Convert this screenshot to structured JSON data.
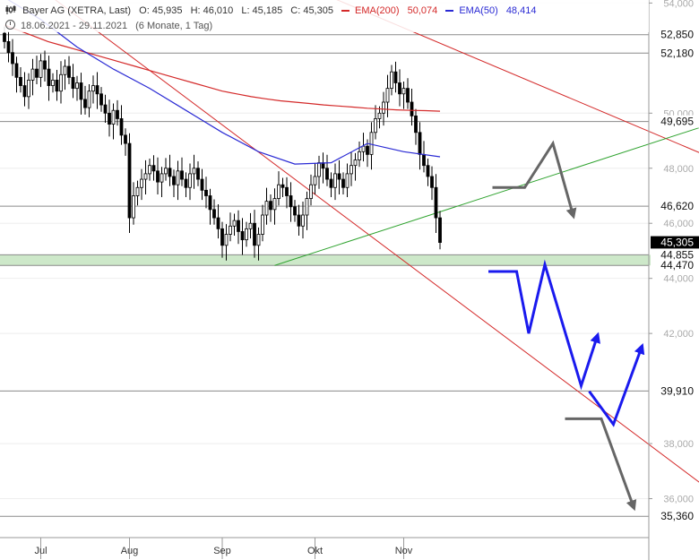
{
  "header": {
    "title": "Bayer AG (XETRA, Last)",
    "open": "O: 45,935",
    "high": "H: 46,010",
    "low": "L: 45,185",
    "close": "C: 45,305",
    "ema200_label": "EMA(200)",
    "ema200_value": "50,074",
    "ema50_label": "EMA(50)",
    "ema50_value": "48,414",
    "period": "18.06.2021 - 29.11.2021",
    "span": "(6 Monate, 1 Tag)"
  },
  "colors": {
    "ema200": "#d42a2a",
    "ema50": "#2a2ad4",
    "trend_red": "#d42a2a",
    "trend_green": "#2fa32f",
    "zone_green": "#cde8c9",
    "arrow_gray": "#666666",
    "arrow_blue": "#1a1aee",
    "candle": "#000000"
  },
  "chart_data": {
    "type": "candlestick",
    "ylim": [
      34.0,
      54.5
    ],
    "y_ticks": [
      {
        "value": 54,
        "label": "54,000"
      },
      {
        "value": 50,
        "label": "50,000"
      },
      {
        "value": 48,
        "label": "48,000"
      },
      {
        "value": 46,
        "label": "46,000"
      },
      {
        "value": 44,
        "label": "44,000"
      },
      {
        "value": 42,
        "label": "42,000"
      },
      {
        "value": 38,
        "label": "38,000"
      },
      {
        "value": 36,
        "label": "36,000"
      }
    ],
    "x_ticks": [
      {
        "label": "Jul",
        "index": 9
      },
      {
        "label": "Aug",
        "index": 31
      },
      {
        "label": "Sep",
        "index": 54
      },
      {
        "label": "Okt",
        "index": 77
      },
      {
        "label": "Nov",
        "index": 99
      }
    ],
    "horizontal_levels": [
      52.85,
      52.18,
      49.695,
      46.62,
      44.855,
      44.47,
      39.91,
      35.36
    ],
    "level_labels": [
      {
        "value": 52.85,
        "label": "52,850"
      },
      {
        "value": 52.18,
        "label": "52,180"
      },
      {
        "value": 49.695,
        "label": "49,695"
      },
      {
        "value": 46.62,
        "label": "46,620"
      },
      {
        "value": 45.305,
        "label": "45,305",
        "highlight": true
      },
      {
        "value": 44.855,
        "label": "44,855"
      },
      {
        "value": 44.47,
        "label": "44,470"
      },
      {
        "value": 39.91,
        "label": "39,910"
      },
      {
        "value": 35.36,
        "label": "35,360"
      }
    ],
    "support_zone": [
      44.47,
      44.855
    ],
    "closes": [
      52.6,
      52.2,
      51.8,
      51.3,
      51.0,
      50.6,
      51.2,
      51.6,
      51.3,
      51.9,
      51.6,
      51.0,
      51.2,
      50.8,
      51.4,
      51.7,
      51.3,
      50.9,
      51.1,
      50.5,
      50.2,
      50.8,
      51.0,
      50.7,
      50.3,
      50.0,
      49.6,
      50.1,
      49.8,
      49.2,
      48.9,
      46.2,
      47.0,
      47.3,
      47.6,
      47.8,
      48.1,
      47.9,
      47.5,
      47.8,
      48.0,
      47.7,
      47.4,
      47.9,
      47.6,
      47.3,
      47.8,
      48.0,
      47.6,
      47.2,
      47.0,
      46.5,
      46.2,
      45.8,
      45.2,
      45.6,
      45.9,
      46.1,
      45.7,
      45.4,
      45.8,
      46.0,
      45.2,
      45.6,
      46.3,
      46.8,
      46.5,
      46.9,
      47.4,
      47.3,
      47.0,
      46.6,
      46.3,
      45.9,
      46.3,
      46.9,
      47.4,
      47.7,
      48.2,
      48.0,
      47.6,
      47.3,
      47.8,
      47.6,
      47.3,
      47.8,
      48.1,
      48.3,
      48.6,
      48.8,
      48.5,
      49.3,
      49.8,
      50.0,
      50.4,
      50.9,
      51.5,
      51.1,
      50.7,
      50.9,
      50.4,
      49.9,
      49.3,
      48.5,
      48.1,
      47.7,
      47.3,
      46.2,
      45.305
    ],
    "ema200": [
      53.2,
      53.0,
      52.8,
      52.6,
      52.45,
      52.3,
      52.15,
      52.0,
      51.85,
      51.7,
      51.55,
      51.4,
      51.25,
      51.1,
      50.95,
      50.8,
      50.7,
      50.6,
      50.52,
      50.45,
      50.4,
      50.35,
      50.3,
      50.26,
      50.22,
      50.18,
      50.15,
      50.12,
      50.1,
      50.09,
      50.07
    ],
    "ema50": [
      54.2,
      53.4,
      52.4,
      51.6,
      50.9,
      50.1,
      49.3,
      48.6,
      48.15,
      48.2,
      48.9,
      48.6,
      48.414
    ],
    "trend_lines": [
      {
        "color": "red",
        "from": {
          "index": 0,
          "value": 55.5
        },
        "to": {
          "index": 175,
          "value": 36.3
        }
      },
      {
        "color": "red",
        "from": {
          "index": 52,
          "value": 56.0
        },
        "to": {
          "index": 175,
          "value": 48.4
        }
      },
      {
        "color": "green",
        "from": {
          "index": 67,
          "value": 44.47
        },
        "to": {
          "index": 175,
          "value": 49.6
        }
      }
    ],
    "scenario_paths": [
      {
        "color": "gray",
        "points": [
          [
            121,
            47.3
          ],
          [
            129,
            47.3
          ],
          [
            136,
            48.9
          ],
          [
            141,
            46.3
          ]
        ]
      },
      {
        "color": "blue",
        "points": [
          [
            120,
            44.25
          ],
          [
            127,
            44.25
          ],
          [
            130,
            42.0
          ],
          [
            134,
            44.5
          ],
          [
            143,
            40.1
          ],
          [
            147,
            41.9
          ]
        ]
      },
      {
        "color": "blue",
        "points": [
          [
            145,
            39.9
          ],
          [
            151,
            38.7
          ],
          [
            158,
            41.5
          ]
        ]
      },
      {
        "color": "gray",
        "points": [
          [
            139,
            38.9
          ],
          [
            148,
            38.9
          ],
          [
            156,
            35.7
          ]
        ]
      }
    ]
  }
}
